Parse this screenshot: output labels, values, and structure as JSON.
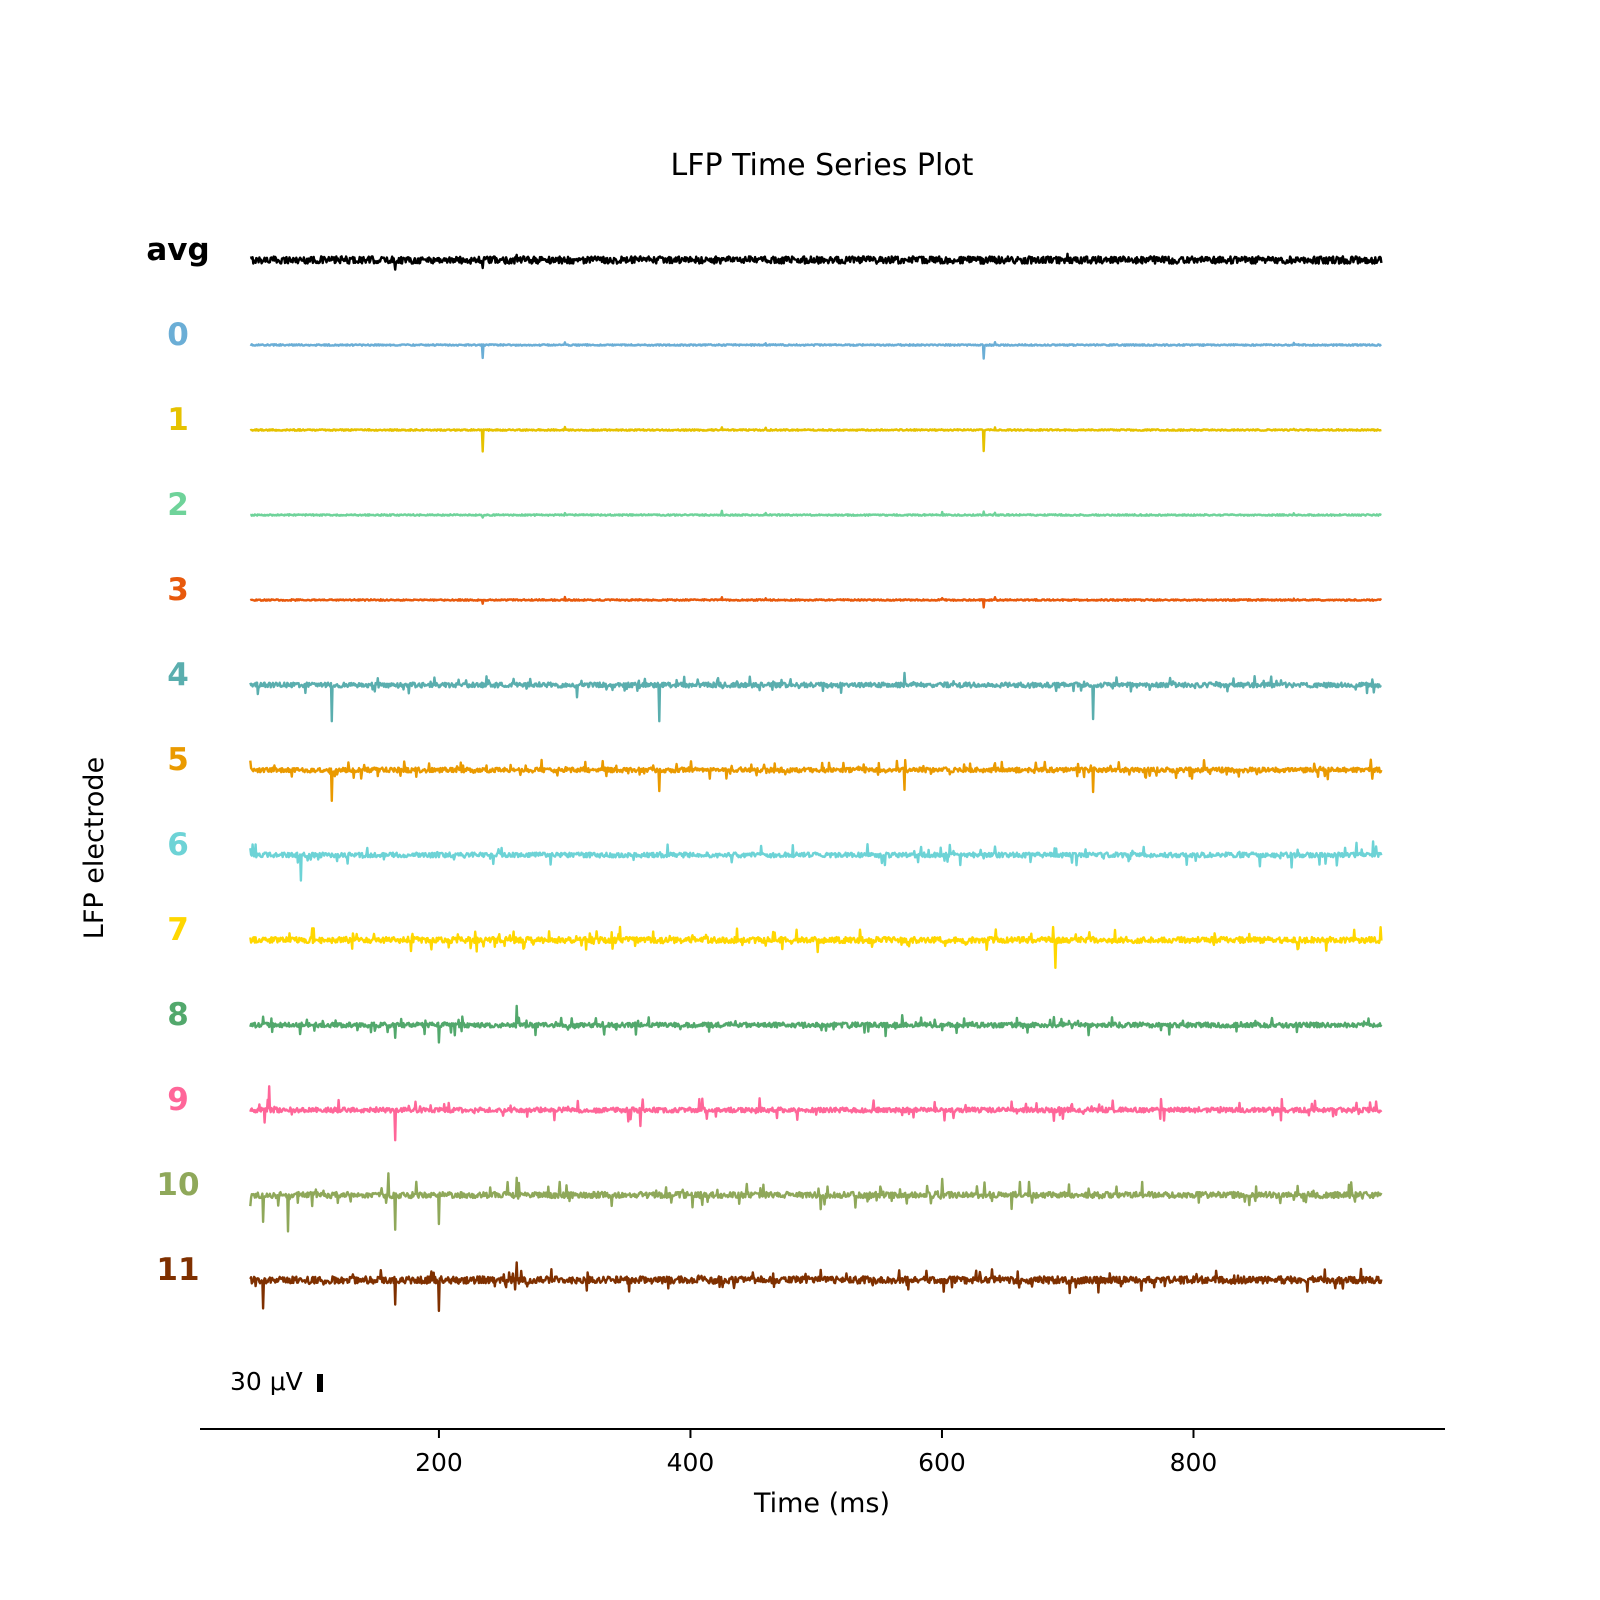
{
  "chart_data": {
    "type": "line",
    "title": "LFP Time Series Plot",
    "xlabel": "Time (ms)",
    "ylabel": "LFP electrode",
    "xlim": [
      10,
      1000
    ],
    "x_range": [
      50,
      950
    ],
    "x_ticks": [
      200,
      400,
      600,
      800
    ],
    "x_tick_labels": [
      "200",
      "400",
      "600",
      "800"
    ],
    "grid": false,
    "scale_bar": {
      "label": "30 μV",
      "value_uV": 30
    },
    "series": [
      {
        "name": "avg",
        "color": "#000000",
        "noise": 6,
        "burst": 0,
        "spikes": [
          [
            165,
            -16
          ],
          [
            235,
            -10
          ],
          [
            262,
            6
          ],
          [
            633,
            -10
          ],
          [
            700,
            8
          ]
        ]
      },
      {
        "name": "0",
        "color": "#6baed6",
        "noise": 1.2,
        "burst": 0,
        "spikes": [
          [
            235,
            -30
          ],
          [
            235,
            8
          ],
          [
            300,
            4
          ],
          [
            425,
            -6
          ],
          [
            425,
            4
          ],
          [
            460,
            4
          ],
          [
            633,
            -30
          ],
          [
            633,
            8
          ],
          [
            642,
            4
          ],
          [
            880,
            3
          ]
        ]
      },
      {
        "name": "1",
        "color": "#e6c200",
        "noise": 1.2,
        "burst": 0,
        "spikes": [
          [
            235,
            -46
          ],
          [
            235,
            10
          ],
          [
            300,
            4
          ],
          [
            425,
            4
          ],
          [
            460,
            4
          ],
          [
            633,
            -44
          ],
          [
            633,
            10
          ],
          [
            642,
            4
          ],
          [
            880,
            3
          ]
        ]
      },
      {
        "name": "2",
        "color": "#6fd39a",
        "noise": 1.2,
        "burst": 0,
        "spikes": [
          [
            235,
            -9
          ],
          [
            235,
            6
          ],
          [
            300,
            4
          ],
          [
            425,
            8
          ],
          [
            460,
            4
          ],
          [
            600,
            4
          ],
          [
            633,
            6
          ],
          [
            642,
            4
          ],
          [
            880,
            3
          ]
        ]
      },
      {
        "name": "3",
        "color": "#e8590c",
        "noise": 1.2,
        "burst": 0,
        "spikes": [
          [
            235,
            -12
          ],
          [
            235,
            6
          ],
          [
            300,
            4
          ],
          [
            425,
            4
          ],
          [
            460,
            4
          ],
          [
            600,
            4
          ],
          [
            633,
            -12
          ],
          [
            642,
            4
          ],
          [
            880,
            3
          ]
        ]
      },
      {
        "name": "4",
        "color": "#5aaeae",
        "noise": 4,
        "burst": 14,
        "spikes": [
          [
            115,
            -58
          ],
          [
            375,
            -58
          ],
          [
            720,
            -58
          ],
          [
            570,
            18
          ],
          [
            310,
            -20
          ]
        ]
      },
      {
        "name": "5",
        "color": "#ea9a00",
        "noise": 4,
        "burst": 15,
        "spikes": [
          [
            115,
            -40
          ],
          [
            375,
            -38
          ],
          [
            720,
            -40
          ],
          [
            570,
            -30
          ]
        ]
      },
      {
        "name": "6",
        "color": "#6dd3d6",
        "noise": 4,
        "burst": 18,
        "spikes": [
          [
            90,
            -40
          ],
          [
            578,
            -34
          ],
          [
            578,
            24
          ],
          [
            943,
            24
          ]
        ]
      },
      {
        "name": "7",
        "color": "#ffd700",
        "noise": 5,
        "burst": 20,
        "spikes": [
          [
            225,
            30
          ],
          [
            225,
            -42
          ],
          [
            690,
            -44
          ]
        ]
      },
      {
        "name": "8",
        "color": "#52a86c",
        "noise": 4,
        "burst": 16,
        "spikes": [
          [
            165,
            -48
          ],
          [
            165,
            28
          ],
          [
            200,
            -30
          ],
          [
            262,
            30
          ]
        ]
      },
      {
        "name": "9",
        "color": "#ff6699",
        "noise": 4,
        "burst": 18,
        "spikes": [
          [
            65,
            38
          ],
          [
            165,
            -48
          ],
          [
            360,
            -30
          ]
        ]
      },
      {
        "name": "10",
        "color": "#8fa85a",
        "noise": 5,
        "burst": 20,
        "spikes": [
          [
            60,
            -60
          ],
          [
            80,
            -60
          ],
          [
            160,
            40
          ],
          [
            165,
            -60
          ],
          [
            200,
            -50
          ],
          [
            262,
            30
          ],
          [
            600,
            30
          ]
        ]
      },
      {
        "name": "11",
        "color": "#7f3000",
        "noise": 6,
        "burst": 20,
        "spikes": [
          [
            165,
            -68
          ],
          [
            165,
            30
          ],
          [
            200,
            -50
          ],
          [
            60,
            -44
          ],
          [
            262,
            30
          ]
        ]
      }
    ]
  }
}
